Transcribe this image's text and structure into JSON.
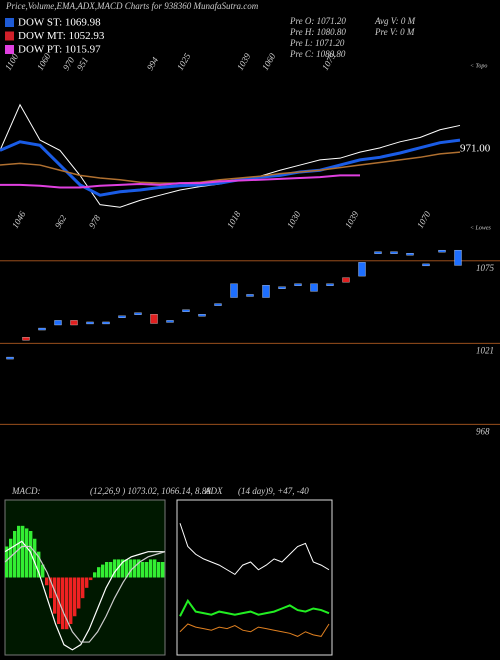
{
  "header": {
    "title": "Price,Volume,EMA,ADX,MACD Charts for 938360 MunafaSutra.com"
  },
  "legend": [
    {
      "name": "DOW ST: 1069.98",
      "color": "#1e5bd6"
    },
    {
      "name": "DOW MT: 1052.93",
      "color": "#d0202a"
    },
    {
      "name": "DOW PT: 1015.97",
      "color": "#e040e0"
    }
  ],
  "info": [
    "Pre O: 1071.20",
    "Pre H: 1080.80",
    "Pre L: 1071.20",
    "Pre C: 1080.80",
    "Avg V: 0 M",
    "Pre V: 0 M"
  ],
  "chart_data": [
    {
      "type": "line",
      "ylim": [
        930,
        1110
      ],
      "top_labels": [
        "1100",
        "1060",
        "970",
        "951",
        "994",
        "1025",
        "1039",
        "1060",
        "1079"
      ],
      "bottom_labels": [
        "1046",
        "962",
        "978",
        "1018",
        "1030",
        "1039",
        "1070"
      ],
      "price_label": "971.00",
      "top_note": "< Topo",
      "bottom_note": "< Lowes",
      "series": [
        {
          "color": "#ffffff",
          "width": 1,
          "values": [
            1005,
            1058,
            1017,
            1005,
            976,
            942,
            939,
            947,
            953,
            959,
            963,
            966,
            971,
            975,
            982,
            988,
            994,
            996,
            1003,
            1008,
            1015,
            1020,
            1029,
            1034
          ]
        },
        {
          "color": "#1a5ce6",
          "width": 3,
          "values": [
            1005,
            1015,
            1011,
            988,
            965,
            953,
            957,
            959,
            962,
            964,
            965,
            967,
            971,
            974,
            976,
            980,
            982,
            988,
            994,
            997,
            1002,
            1008,
            1014,
            1017
          ]
        },
        {
          "color": "#b07030",
          "width": 1.5,
          "values": [
            988,
            990,
            988,
            982,
            976,
            973,
            971,
            968,
            967,
            967,
            968,
            971,
            973,
            975,
            978,
            980,
            982,
            985,
            988,
            991,
            994,
            997,
            1001,
            1003
          ]
        },
        {
          "color": "#e040e0",
          "width": 2,
          "values": [
            965,
            965,
            964,
            962,
            962,
            964,
            965,
            966,
            965,
            967,
            967,
            969,
            970,
            971,
            972,
            973,
            974,
            976,
            976,
            null,
            null,
            null,
            null,
            null
          ]
        }
      ]
    },
    {
      "type": "candlestick",
      "ylim": [
        925,
        1105
      ],
      "yticks": [
        1075,
        1021,
        968
      ],
      "up_color": "#1e6fff",
      "down_color": "#e02020",
      "open": [
        1012,
        1025,
        1030,
        1033,
        1036,
        1034,
        1034,
        1038,
        1040,
        1040,
        1035,
        1042,
        1039,
        1046,
        1051,
        1052,
        1051,
        1057,
        1059,
        1055,
        1059,
        1064,
        1065,
        1080,
        1080,
        1079,
        1072,
        1081,
        1072
      ],
      "close": [
        1012,
        1023,
        1031,
        1036,
        1033,
        1035,
        1035,
        1039,
        1041,
        1034,
        1036,
        1043,
        1040,
        1047,
        1060,
        1053,
        1059,
        1058,
        1060,
        1060,
        1060,
        1061,
        1074,
        1081,
        1081,
        1080,
        1073,
        1082,
        1082
      ]
    },
    {
      "type": "macd",
      "title": "MACD:",
      "subtitle": "(12,26,9 ) 1073.02, 1066.14, 8.88",
      "ylim": [
        -30,
        30
      ],
      "histogram": [
        12,
        15,
        18,
        20,
        20,
        19,
        18,
        15,
        10,
        5,
        -3,
        -8,
        -14,
        -18,
        -20,
        -20,
        -18,
        -15,
        -12,
        -8,
        -4,
        -1,
        2,
        4,
        5,
        6,
        6,
        7,
        7,
        7,
        7,
        7,
        7,
        7,
        6,
        6,
        7,
        7,
        6,
        6
      ],
      "series": [
        {
          "color": "#ffffff",
          "values": [
            10,
            12,
            14,
            10,
            2,
            -8,
            -18,
            -26,
            -28,
            -26,
            -20,
            -12,
            -4,
            2,
            6,
            8,
            9,
            10,
            10,
            10
          ]
        },
        {
          "color": "#cccccc",
          "values": [
            6,
            9,
            12,
            12,
            8,
            2,
            -6,
            -14,
            -21,
            -25,
            -25,
            -21,
            -15,
            -8,
            -2,
            3,
            6,
            8,
            9,
            10
          ]
        }
      ]
    },
    {
      "type": "adx",
      "title": "ADX",
      "subtitle": "(14 day)9, +47, -40",
      "ylim": [
        0,
        100
      ],
      "series": [
        {
          "color": "#ffffff",
          "values": [
            85,
            70,
            65,
            62,
            60,
            58,
            55,
            52,
            58,
            60,
            55,
            58,
            62,
            60,
            65,
            70,
            72,
            60,
            58,
            55
          ]
        },
        {
          "color": "#22ee22",
          "values": [
            25,
            35,
            28,
            27,
            26,
            28,
            27,
            26,
            27,
            28,
            26,
            27,
            28,
            30,
            32,
            29,
            28,
            30,
            29,
            27
          ]
        },
        {
          "color": "#e08020",
          "values": [
            15,
            20,
            18,
            17,
            16,
            18,
            17,
            19,
            16,
            15,
            18,
            17,
            16,
            15,
            14,
            12,
            15,
            13,
            12,
            20
          ]
        }
      ]
    }
  ]
}
